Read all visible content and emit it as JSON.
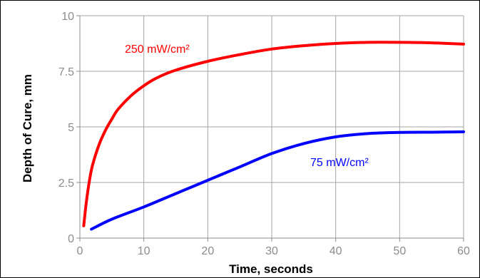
{
  "chart_data": {
    "type": "line",
    "title": "",
    "xlabel": "Time, seconds",
    "ylabel": "Depth of Cure, mm",
    "xlim": [
      0,
      60
    ],
    "ylim": [
      0,
      10
    ],
    "x_ticks": [
      0,
      10,
      20,
      30,
      40,
      50,
      60
    ],
    "y_ticks": [
      0,
      2.5,
      5,
      7.5,
      10
    ],
    "y_tick_labels": [
      "0",
      "2.5",
      "5",
      "7.5",
      "10"
    ],
    "grid": true,
    "series": [
      {
        "name": "250 mW/cm²",
        "color": "#ff0000",
        "x": [
          0.6,
          1,
          1.5,
          2,
          3,
          4,
          5,
          6,
          8,
          10,
          12,
          15,
          20,
          25,
          30,
          35,
          40,
          45,
          50,
          55,
          60
        ],
        "y": [
          0.55,
          1.6,
          2.6,
          3.3,
          4.2,
          4.85,
          5.35,
          5.8,
          6.4,
          6.85,
          7.2,
          7.55,
          7.95,
          8.25,
          8.5,
          8.65,
          8.75,
          8.8,
          8.8,
          8.78,
          8.72
        ]
      },
      {
        "name": "75 mW/cm²",
        "color": "#0000ff",
        "x": [
          1.8,
          5,
          10,
          15,
          20,
          25,
          30,
          35,
          40,
          45,
          50,
          55,
          60
        ],
        "y": [
          0.4,
          0.85,
          1.4,
          2.0,
          2.6,
          3.2,
          3.8,
          4.25,
          4.55,
          4.7,
          4.75,
          4.76,
          4.78
        ]
      }
    ]
  }
}
